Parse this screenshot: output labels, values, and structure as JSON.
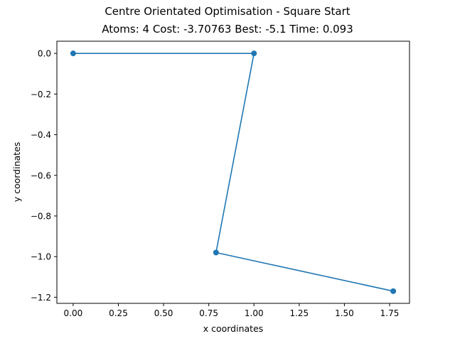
{
  "chart_data": {
    "type": "line",
    "title": "Centre Orientated Optimisation - Square Start",
    "subtitle": "Atoms: 4 Cost: -3.70763 Best: -5.1 Time: 0.093",
    "xlabel": "x coordinates",
    "ylabel": "y coordinates",
    "xlim": [
      -0.09,
      1.86
    ],
    "ylim": [
      -1.23,
      0.06
    ],
    "xticks": [
      0.0,
      0.25,
      0.5,
      0.75,
      1.0,
      1.25,
      1.5,
      1.75
    ],
    "xtick_labels": [
      "0.00",
      "0.25",
      "0.50",
      "0.75",
      "1.00",
      "1.25",
      "1.50",
      "1.75"
    ],
    "yticks": [
      0.0,
      -0.2,
      -0.4,
      -0.6,
      -0.8,
      -1.0,
      -1.2
    ],
    "ytick_labels": [
      "0.0",
      "−0.2",
      "−0.4",
      "−0.6",
      "−0.8",
      "−1.0",
      "−1.2"
    ],
    "grid": false,
    "series": [
      {
        "color": "#1f77b4",
        "marker": "circle",
        "x": [
          0.0,
          1.0,
          0.79,
          1.77
        ],
        "y": [
          0.0,
          0.0,
          -0.98,
          -1.17
        ]
      }
    ]
  }
}
